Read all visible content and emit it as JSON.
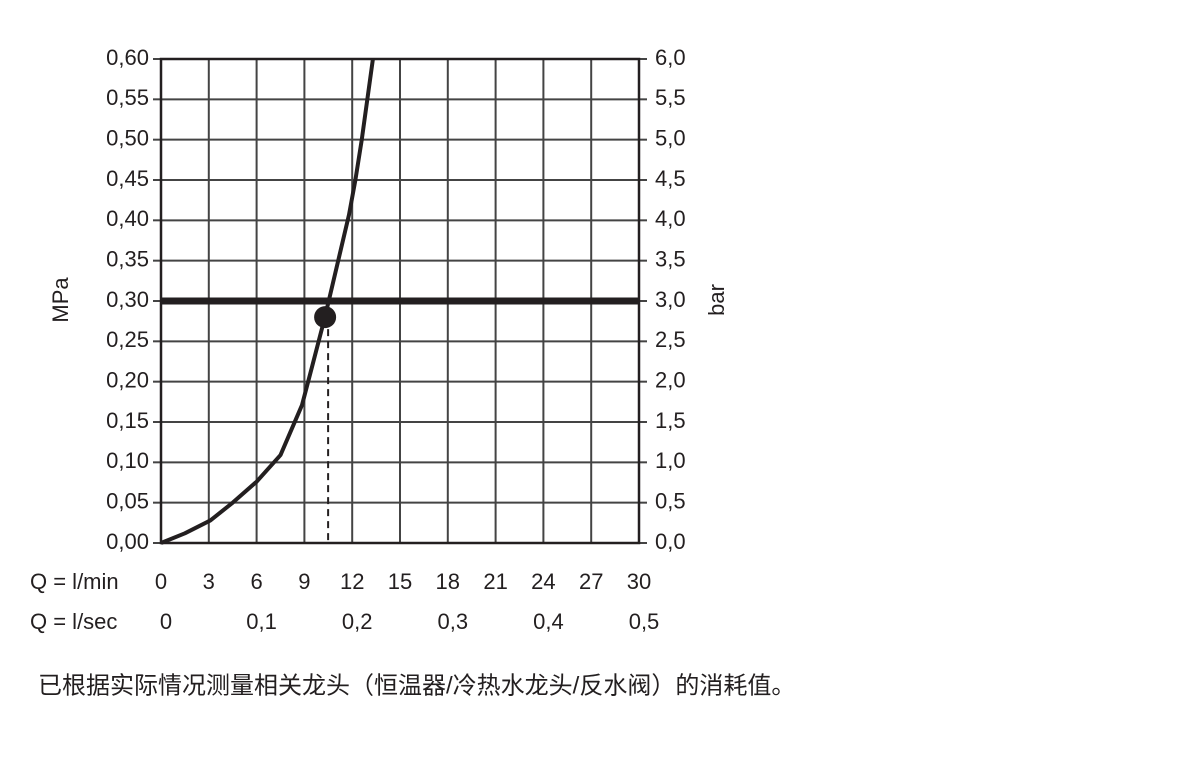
{
  "chart_data": {
    "type": "line",
    "x_label": "Q = l/min",
    "x2_label": "Q = l/sec",
    "y_label": "MPa",
    "y2_label": "bar",
    "xlim": [
      0,
      30
    ],
    "xticks": [
      0,
      3,
      6,
      9,
      12,
      15,
      18,
      21,
      24,
      27,
      30
    ],
    "x2lim": [
      0,
      0.5
    ],
    "x2ticks": [
      0,
      {
        "value": 0.1,
        "label": "0,1"
      },
      {
        "value": 0.2,
        "label": "0,2"
      },
      {
        "value": 0.3,
        "label": "0,3"
      },
      {
        "value": 0.4,
        "label": "0,4"
      },
      {
        "value": 0.5,
        "label": "0,5"
      }
    ],
    "ylim": [
      0,
      0.6
    ],
    "yticks": [
      {
        "value": 0,
        "label": "0,00"
      },
      {
        "value": 0.05,
        "label": "0,05"
      },
      {
        "value": 0.1,
        "label": "0,10"
      },
      {
        "value": 0.15,
        "label": "0,15"
      },
      {
        "value": 0.2,
        "label": "0,20"
      },
      {
        "value": 0.25,
        "label": "0,25"
      },
      {
        "value": 0.3,
        "label": "0,30"
      },
      {
        "value": 0.35,
        "label": "0,35"
      },
      {
        "value": 0.4,
        "label": "0,40"
      },
      {
        "value": 0.45,
        "label": "0,45"
      },
      {
        "value": 0.5,
        "label": "0,50"
      },
      {
        "value": 0.55,
        "label": "0,55"
      },
      {
        "value": 0.6,
        "label": "0,60"
      }
    ],
    "y2lim": [
      0,
      6
    ],
    "y2ticks": [
      {
        "value": 0,
        "label": "0,0"
      },
      {
        "value": 0.5,
        "label": "0,5"
      },
      {
        "value": 1,
        "label": "1,0"
      },
      {
        "value": 1.5,
        "label": "1,5"
      },
      {
        "value": 2,
        "label": "2,0"
      },
      {
        "value": 2.5,
        "label": "2,5"
      },
      {
        "value": 3,
        "label": "3,0"
      },
      {
        "value": 3.5,
        "label": "3,5"
      },
      {
        "value": 4,
        "label": "4,0"
      },
      {
        "value": 4.5,
        "label": "4,5"
      },
      {
        "value": 5,
        "label": "5,0"
      },
      {
        "value": 5.5,
        "label": "5,5"
      },
      {
        "value": 6,
        "label": "6,0"
      }
    ],
    "grid": true,
    "series": [
      {
        "color": "#231f20",
        "x": [
          0,
          1.5,
          3.1,
          4.5,
          6,
          7.5,
          8.85,
          9.5,
          10.3,
          11.8,
          12.2,
          12.6,
          13.3
        ],
        "values": [
          0,
          0.012,
          0.028,
          0.05,
          0.076,
          0.109,
          0.171,
          0.22,
          0.281,
          0.407,
          0.45,
          0.5,
          0.6
        ]
      }
    ],
    "reference_line": {
      "value": 0.3
    },
    "marker": {
      "x": 10.3,
      "y": 0.28
    }
  },
  "footnote": "已根据实际情况测量相关龙头（恒温器/冷热水龙头/反水阀）的消耗值。"
}
